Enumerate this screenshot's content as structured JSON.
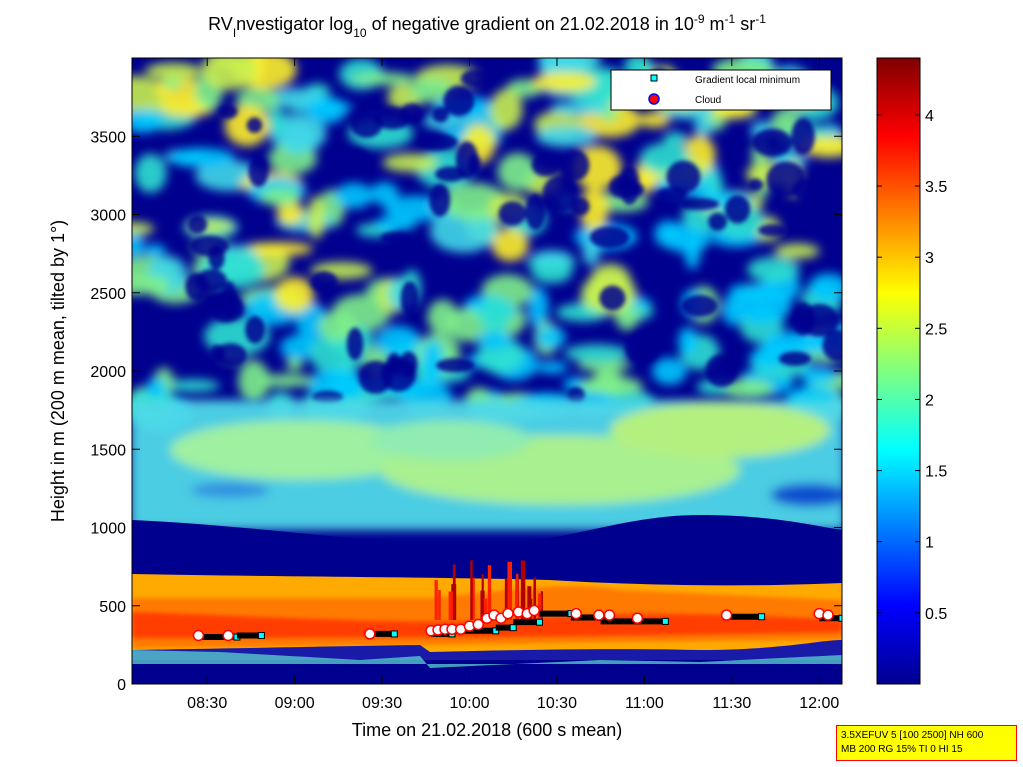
{
  "chart_data": {
    "type": "heatmap",
    "title": {
      "p1": "RV",
      "p2": "I",
      "p3": "nvestigator log",
      "p4": "10",
      "p5": " of negative gradient on 21.02.2018 in 10",
      "p6": "-9",
      "p7": " m",
      "p8": "-1",
      "p9": " sr",
      "p10": "-1"
    },
    "xlabel": "Time on 21.02.2018 (600 s mean)",
    "ylabel": "Height in m (200 m mean, tilted by 1°)",
    "x_ticks": [
      "08:30",
      "09:00",
      "09:30",
      "10:00",
      "10:30",
      "11:00",
      "11:30",
      "12:00"
    ],
    "x_tick_values": [
      8.5,
      9.0,
      9.5,
      10.0,
      10.5,
      11.0,
      11.5,
      12.0
    ],
    "xlim": [
      8.07,
      12.13
    ],
    "y_ticks": [
      "0",
      "500",
      "1000",
      "1500",
      "2000",
      "2500",
      "3000",
      "3500"
    ],
    "y_tick_values": [
      0,
      500,
      1000,
      1500,
      2000,
      2500,
      3000,
      3500
    ],
    "ylim": [
      0,
      4000
    ],
    "colorbar": {
      "ticks": [
        "0.5",
        "1",
        "1.5",
        "2",
        "2.5",
        "3",
        "3.5",
        "4"
      ],
      "tick_values": [
        0.5,
        1,
        1.5,
        2,
        2.5,
        3,
        3.5,
        4
      ],
      "range": [
        0,
        4.4
      ],
      "colormap": "jet"
    },
    "legend": {
      "placement": "top-right",
      "entries": [
        {
          "label": "Gradient local minimum",
          "marker": "square",
          "color": "#00ffff"
        },
        {
          "label": "Cloud",
          "marker": "circle",
          "color": "#ff0000"
        }
      ]
    },
    "gradient_min_segments": [
      {
        "x0": 8.45,
        "x1": 8.67,
        "y": 300
      },
      {
        "x0": 8.67,
        "x1": 8.81,
        "y": 310
      },
      {
        "x0": 9.43,
        "x1": 9.57,
        "y": 320
      },
      {
        "x0": 9.78,
        "x1": 9.9,
        "y": 320
      },
      {
        "x0": 9.9,
        "x1": 10.15,
        "y": 340
      },
      {
        "x0": 10.15,
        "x1": 10.25,
        "y": 360
      },
      {
        "x0": 10.25,
        "x1": 10.4,
        "y": 395
      },
      {
        "x0": 10.4,
        "x1": 10.58,
        "y": 450
      },
      {
        "x0": 10.58,
        "x1": 10.75,
        "y": 425
      },
      {
        "x0": 10.75,
        "x1": 11.12,
        "y": 400
      },
      {
        "x0": 11.45,
        "x1": 11.67,
        "y": 430
      },
      {
        "x0": 12.0,
        "x1": 12.13,
        "y": 420
      }
    ],
    "cloud_points": [
      {
        "x": 8.45,
        "y": 310
      },
      {
        "x": 8.62,
        "y": 310
      },
      {
        "x": 9.43,
        "y": 320
      },
      {
        "x": 9.78,
        "y": 340
      },
      {
        "x": 9.82,
        "y": 345
      },
      {
        "x": 9.86,
        "y": 350
      },
      {
        "x": 9.9,
        "y": 350
      },
      {
        "x": 9.95,
        "y": 350
      },
      {
        "x": 10.0,
        "y": 370
      },
      {
        "x": 10.05,
        "y": 380
      },
      {
        "x": 10.1,
        "y": 420
      },
      {
        "x": 10.14,
        "y": 440
      },
      {
        "x": 10.18,
        "y": 420
      },
      {
        "x": 10.22,
        "y": 450
      },
      {
        "x": 10.28,
        "y": 460
      },
      {
        "x": 10.33,
        "y": 450
      },
      {
        "x": 10.37,
        "y": 470
      },
      {
        "x": 10.61,
        "y": 450
      },
      {
        "x": 10.74,
        "y": 440
      },
      {
        "x": 10.8,
        "y": 440
      },
      {
        "x": 10.96,
        "y": 420
      },
      {
        "x": 11.47,
        "y": 440
      },
      {
        "x": 12.0,
        "y": 450
      },
      {
        "x": 12.05,
        "y": 440
      }
    ]
  },
  "info_box": {
    "line1": "3.5XEFUV 5 [100 2500] NH 600",
    "line2": "MB 200 RG 15% TI 0 HI 15"
  }
}
